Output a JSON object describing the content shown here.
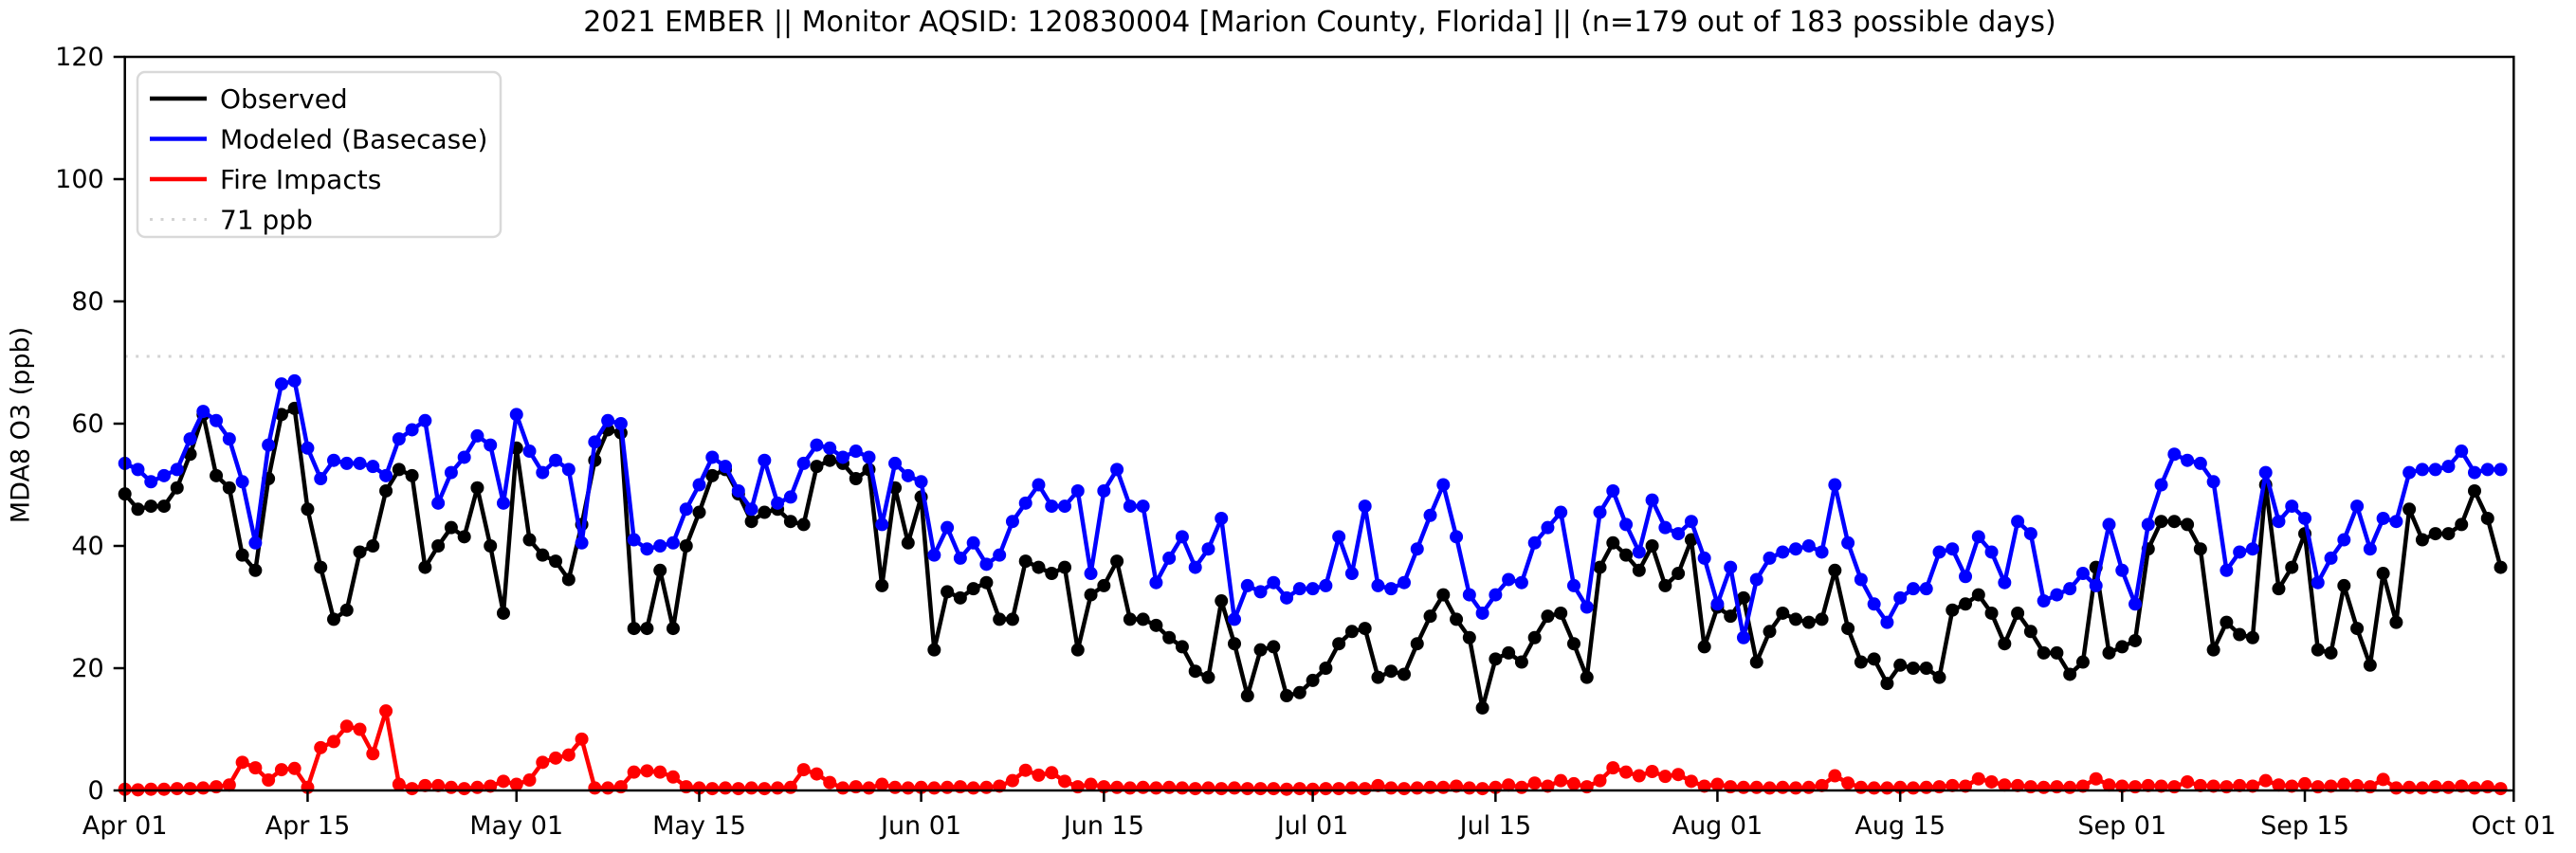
{
  "figure": {
    "title": "2021 EMBER || Monitor AQSID: 120830004 [Marion County, Florida] || (n=179 out of 183 possible days)",
    "y_axis_label": "MDA8 O3 (ppb)"
  },
  "chart_data": {
    "type": "line",
    "title": "2021 EMBER || Monitor AQSID: 120830004 [Marion County, Florida] || (n=179 out of 183 possible days)",
    "xlabel": "",
    "ylabel": "MDA8 O3 (ppb)",
    "ylim": [
      0,
      120
    ],
    "y_ticks": [
      0,
      20,
      40,
      60,
      80,
      100,
      120
    ],
    "x_start_date": "2021-04-01",
    "x_end_date": "2021-10-01",
    "n_days": 183,
    "grid": false,
    "legend_position": "upper left",
    "x_tick_labels": [
      "Apr 01",
      "Apr 15",
      "May 01",
      "May 15",
      "Jun 01",
      "Jun 15",
      "Jul 01",
      "Jul 15",
      "Aug 01",
      "Aug 15",
      "Sep 01",
      "Sep 15",
      "Oct 01"
    ],
    "x_tick_day_index": [
      0,
      14,
      30,
      44,
      61,
      75,
      91,
      105,
      122,
      136,
      153,
      167,
      183
    ],
    "threshold": {
      "label": "71 ppb",
      "value": 71,
      "color": "#d3d3d3",
      "style": "dotted"
    },
    "marker": "circle",
    "series": [
      {
        "name": "Observed",
        "color": "#000000",
        "values": [
          48.5,
          46,
          46.5,
          46.5,
          49.5,
          55,
          61.5,
          51.5,
          49.5,
          38.5,
          36,
          51,
          61.5,
          62.5,
          46,
          36.5,
          28,
          29.5,
          39,
          40,
          49,
          52.5,
          51.5,
          36.5,
          40,
          43,
          41.5,
          49.5,
          40,
          29,
          56,
          41,
          38.5,
          37.5,
          34.5,
          43.5,
          54,
          59,
          58.5,
          26.5,
          26.5,
          36,
          26.5,
          40,
          45.5,
          51.5,
          52.5,
          48.5,
          44,
          45.5,
          46,
          44,
          43.5,
          53,
          54,
          53.5,
          51,
          52.5,
          33.5,
          49.5,
          40.5,
          48,
          23,
          32.5,
          31.5,
          33,
          34,
          28,
          28,
          37.5,
          36.5,
          35.5,
          36.5,
          23,
          32,
          33.5,
          37.5,
          28,
          28,
          27,
          25,
          23.5,
          19.5,
          18.5,
          31,
          24,
          15.5,
          23,
          23.5,
          15.5,
          16,
          18,
          20,
          24,
          26,
          26.5,
          18.5,
          19.5,
          19,
          24,
          28.5,
          32,
          28,
          25,
          13.5,
          21.5,
          22.5,
          21,
          25,
          28.5,
          29,
          24,
          18.5,
          36.5,
          40.5,
          38.5,
          36,
          40,
          33.5,
          35.5,
          41,
          23.5,
          30,
          28.5,
          31.5,
          21,
          26,
          29,
          28,
          27.5,
          28,
          36,
          26.5,
          21,
          21.5,
          17.5,
          20.5,
          20,
          20,
          18.5,
          29.5,
          30.5,
          32,
          29,
          24,
          29,
          26,
          22.5,
          22.5,
          19,
          21,
          36.5,
          22.5,
          23.5,
          24.5,
          39.5,
          44,
          44,
          43.5,
          39.5,
          23,
          27.5,
          25.5,
          25,
          50,
          33,
          36.5,
          42,
          23,
          22.5,
          33.5,
          26.5,
          20.5,
          35.5,
          27.5,
          46,
          41,
          42,
          42,
          43.5,
          49,
          44.5,
          36.5
        ]
      },
      {
        "name": "Modeled (Basecase)",
        "color": "#0000ff",
        "values": [
          53.5,
          52.5,
          50.5,
          51.5,
          52.5,
          57.5,
          62,
          60.5,
          57.5,
          50.5,
          40.5,
          56.5,
          66.5,
          67,
          56,
          51,
          54,
          53.5,
          53.5,
          53,
          51.5,
          57.5,
          59,
          60.5,
          47,
          52,
          54.5,
          58,
          56.5,
          47,
          61.5,
          55.5,
          52,
          54,
          52.5,
          40.5,
          57,
          60.5,
          60,
          41,
          39.5,
          40,
          40.5,
          46,
          50,
          54.5,
          53,
          49,
          46,
          54,
          47,
          48,
          53.5,
          56.5,
          56,
          54.5,
          55.5,
          54.5,
          43.5,
          53.5,
          51.5,
          50.5,
          38.5,
          43,
          38,
          40.5,
          37,
          38.5,
          44,
          47,
          50,
          46.5,
          46.5,
          49,
          35.5,
          49,
          52.5,
          46.5,
          46.5,
          34,
          38,
          41.5,
          36.5,
          39.5,
          44.5,
          28,
          33.5,
          32.5,
          34,
          31.5,
          33,
          33,
          33.5,
          41.5,
          35.5,
          46.5,
          33.5,
          33,
          34,
          39.5,
          45,
          50,
          41.5,
          32,
          29,
          32,
          34.5,
          34,
          40.5,
          43,
          45.5,
          33.5,
          30,
          45.5,
          49,
          43.5,
          39,
          47.5,
          43,
          42,
          44,
          38,
          30.5,
          36.5,
          25,
          34.5,
          38,
          39,
          39.5,
          40,
          39,
          50,
          40.5,
          34.5,
          30.5,
          27.5,
          31.5,
          33,
          33,
          39,
          39.5,
          35,
          41.5,
          39,
          34,
          44,
          42,
          31,
          32,
          33,
          35.5,
          33.5,
          43.5,
          36,
          30.5,
          43.5,
          50,
          55,
          54,
          53.5,
          50.5,
          36,
          39,
          39.5,
          52,
          44,
          46.5,
          44.5,
          34,
          38,
          41,
          46.5,
          39.5,
          44.5,
          44,
          52,
          52.5,
          52.5,
          53,
          55.5,
          52,
          52.5,
          52.5
        ]
      },
      {
        "name": "Fire Impacts",
        "color": "#ff0000",
        "values": [
          0.2,
          0.1,
          0.2,
          0.2,
          0.3,
          0.3,
          0.4,
          0.6,
          0.9,
          4.6,
          3.7,
          1.7,
          3.4,
          3.6,
          0.5,
          7,
          8,
          10.5,
          10,
          6,
          13,
          1,
          0.3,
          0.8,
          0.8,
          0.5,
          0.3,
          0.5,
          0.7,
          1.5,
          1,
          1.7,
          4.6,
          5.3,
          5.8,
          8.4,
          0.4,
          0.4,
          0.6,
          3,
          3.2,
          3,
          2.2,
          0.6,
          0.4,
          0.3,
          0.4,
          0.3,
          0.4,
          0.3,
          0.4,
          0.5,
          3.4,
          2.7,
          1.3,
          0.4,
          0.6,
          0.4,
          1,
          0.5,
          0.4,
          0.5,
          0.4,
          0.5,
          0.6,
          0.4,
          0.5,
          0.7,
          1.6,
          3.3,
          2.5,
          2.9,
          1.5,
          0.6,
          1,
          0.6,
          0.5,
          0.4,
          0.5,
          0.4,
          0.5,
          0.4,
          0.3,
          0.4,
          0.3,
          0.4,
          0.3,
          0.3,
          0.3,
          0.2,
          0.3,
          0.2,
          0.3,
          0.3,
          0.4,
          0.3,
          0.8,
          0.4,
          0.3,
          0.4,
          0.5,
          0.5,
          0.7,
          0.4,
          0.3,
          0.5,
          0.9,
          0.5,
          1.2,
          0.7,
          1.6,
          1.1,
          0.6,
          1.6,
          3.7,
          3,
          2.4,
          3.1,
          2.3,
          2.6,
          1.5,
          0.7,
          1,
          0.6,
          0.5,
          0.5,
          0.4,
          0.5,
          0.4,
          0.5,
          0.8,
          2.4,
          1.2,
          0.5,
          0.4,
          0.4,
          0.5,
          0.4,
          0.5,
          0.6,
          0.8,
          0.7,
          1.9,
          1.4,
          0.9,
          0.8,
          0.6,
          0.5,
          0.6,
          0.5,
          0.7,
          1.9,
          0.9,
          0.7,
          0.6,
          0.8,
          0.7,
          0.6,
          1.4,
          0.8,
          0.7,
          0.6,
          0.8,
          0.7,
          1.6,
          0.9,
          0.7,
          1.1,
          0.6,
          0.7,
          1,
          0.8,
          0.6,
          1.8,
          0.4,
          0.5,
          0.4,
          0.6,
          0.5,
          0.7,
          0.4,
          0.6,
          0.3
        ]
      }
    ],
    "legend_entries": [
      "Observed",
      "Modeled (Basecase)",
      "Fire Impacts",
      "71 ppb"
    ]
  }
}
